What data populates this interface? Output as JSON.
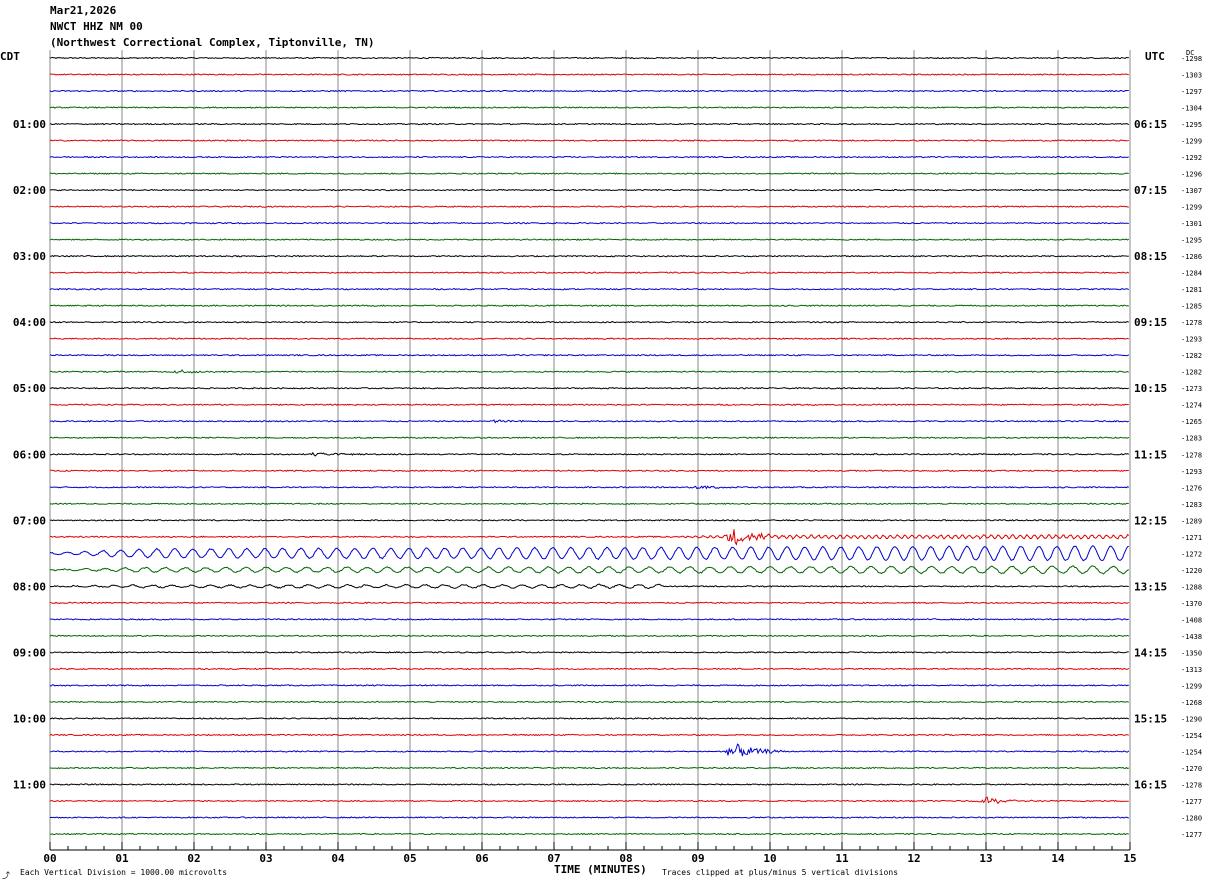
{
  "header": {
    "date": "Mar21,2026",
    "station": "NWCT HHZ NM 00",
    "location": "(Northwest Correctional Complex, Tiptonville, TN)"
  },
  "left_timezone": "CDT",
  "right_timezone": "UTC",
  "dc_label": "DC",
  "footer": {
    "scale_note": "Each Vertical Division = 1000.00 microvolts",
    "clip_note": "Traces clipped at plus/minus 5 vertical divisions",
    "corner_mark": "⤴"
  },
  "colors": {
    "trace_cycle": [
      "#000000",
      "#dd0000",
      "#0000cc",
      "#006600"
    ],
    "grid": "#888888",
    "background": "#ffffff"
  },
  "chart_data": {
    "type": "line",
    "title": "",
    "xlabel": "TIME (MINUTES)",
    "ylabel": "",
    "x_range": [
      0,
      15
    ],
    "x_ticks": [
      "00",
      "01",
      "02",
      "03",
      "04",
      "05",
      "06",
      "07",
      "08",
      "09",
      "10",
      "11",
      "12",
      "13",
      "14",
      "15"
    ],
    "rows_count": 48,
    "minutes_per_row": 15,
    "left_hour_labels": [
      {
        "row": 4,
        "label": "01:00"
      },
      {
        "row": 8,
        "label": "02:00"
      },
      {
        "row": 12,
        "label": "03:00"
      },
      {
        "row": 16,
        "label": "04:00"
      },
      {
        "row": 20,
        "label": "05:00"
      },
      {
        "row": 24,
        "label": "06:00"
      },
      {
        "row": 28,
        "label": "07:00"
      },
      {
        "row": 32,
        "label": "08:00"
      },
      {
        "row": 36,
        "label": "09:00"
      },
      {
        "row": 40,
        "label": "10:00"
      },
      {
        "row": 44,
        "label": "11:00"
      }
    ],
    "right_hour_labels": [
      {
        "row": 4,
        "label": "06:15"
      },
      {
        "row": 8,
        "label": "07:15"
      },
      {
        "row": 12,
        "label": "08:15"
      },
      {
        "row": 16,
        "label": "09:15"
      },
      {
        "row": 20,
        "label": "10:15"
      },
      {
        "row": 24,
        "label": "11:15"
      },
      {
        "row": 28,
        "label": "12:15"
      },
      {
        "row": 32,
        "label": "13:15"
      },
      {
        "row": 36,
        "label": "14:15"
      },
      {
        "row": 40,
        "label": "15:15"
      },
      {
        "row": 44,
        "label": "16:15"
      }
    ],
    "dc_offsets": [
      "-1298",
      "-1303",
      "-1297",
      "-1304",
      "-1295",
      "-1299",
      "-1292",
      "-1296",
      "-1307",
      "-1299",
      "-1301",
      "-1295",
      "-1286",
      "-1284",
      "-1281",
      "-1285",
      "-1278",
      "-1293",
      "-1282",
      "-1282",
      "-1273",
      "-1274",
      "-1265",
      "-1283",
      "-1278",
      "-1293",
      "-1276",
      "-1283",
      "-1289",
      "-1271",
      "-1272",
      "-1220",
      "-1288",
      "-1370",
      "-1408",
      "-1438",
      "-1350",
      "-1313",
      "-1299",
      "-1268",
      "-1290",
      "-1254",
      "-1254",
      "-1270",
      "-1278",
      "-1277",
      "-1280",
      "-1277"
    ],
    "wave_events": [
      {
        "rows": [
          29
        ],
        "from_min": 8.5,
        "to_min": 15,
        "period_min": 0.1,
        "amplitude_div": 1.0
      },
      {
        "rows": [
          30
        ],
        "from_min": 0,
        "to_min": 15,
        "period_min": 0.25,
        "amplitude_div": 4.0
      },
      {
        "rows": [
          31
        ],
        "from_min": 0,
        "to_min": 15,
        "period_min": 0.28,
        "amplitude_div": 2.0
      },
      {
        "rows": [
          32
        ],
        "from_min": 0,
        "to_min": 8.5,
        "period_min": 0.27,
        "amplitude_div": 1.2
      }
    ],
    "bursts": [
      {
        "row": 29,
        "minute": 9.5,
        "amplitude_div": 2.5
      },
      {
        "row": 42,
        "minute": 9.5,
        "amplitude_div": 2.5
      },
      {
        "row": 45,
        "minute": 13.0,
        "amplitude_div": 1.2
      },
      {
        "row": 26,
        "minute": 9.0,
        "amplitude_div": 0.6
      },
      {
        "row": 24,
        "minute": 3.7,
        "amplitude_div": 0.6
      },
      {
        "row": 19,
        "minute": 1.8,
        "amplitude_div": 0.6
      },
      {
        "row": 22,
        "minute": 6.2,
        "amplitude_div": 0.5
      }
    ]
  }
}
